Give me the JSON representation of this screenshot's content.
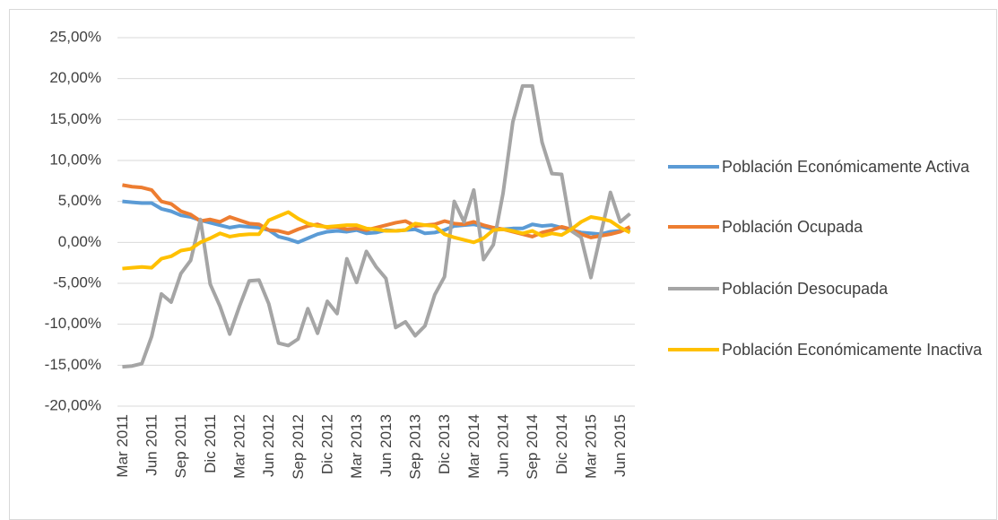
{
  "chart_data": {
    "type": "line",
    "categories": [
      "Mar 2011",
      null,
      null,
      "Jun 2011",
      null,
      null,
      "Sep 2011",
      null,
      null,
      "Dic 2011",
      null,
      null,
      "Mar 2012",
      null,
      null,
      "Jun 2012",
      null,
      null,
      "Sep 2012",
      null,
      null,
      "Dic 2012",
      null,
      null,
      "Mar 2013",
      null,
      null,
      "Jun 2013",
      null,
      null,
      "Sep 2013",
      null,
      null,
      "Dic 2013",
      null,
      null,
      "Mar 2014",
      null,
      null,
      "Jun 2014",
      null,
      null,
      "Sep 2014",
      null,
      null,
      "Dic 2014",
      null,
      null,
      "Mar 2015",
      null,
      null,
      "Jun 2015",
      null
    ],
    "series": [
      {
        "name": "Población Económicamente Activa",
        "color": "#5b9bd5",
        "values": [
          5.0,
          4.9,
          4.8,
          4.8,
          4.1,
          3.8,
          3.3,
          3.1,
          2.7,
          2.4,
          2.1,
          1.8,
          2.0,
          1.9,
          1.8,
          1.5,
          0.7,
          0.4,
          0.0,
          0.5,
          1.0,
          1.3,
          1.4,
          1.3,
          1.5,
          1.1,
          1.2,
          1.5,
          1.4,
          1.5,
          1.6,
          1.1,
          1.2,
          1.5,
          2.0,
          2.1,
          2.2,
          1.9,
          1.6,
          1.6,
          1.7,
          1.7,
          2.2,
          2.0,
          2.1,
          1.8,
          1.5,
          1.2,
          1.1,
          1.0,
          1.3,
          1.4,
          1.7
        ]
      },
      {
        "name": "Población Ocupada",
        "color": "#ed7d31",
        "values": [
          7.0,
          6.8,
          6.7,
          6.4,
          5.0,
          4.7,
          3.8,
          3.4,
          2.6,
          2.8,
          2.5,
          3.1,
          2.7,
          2.3,
          2.2,
          1.5,
          1.4,
          1.1,
          1.6,
          2.0,
          2.2,
          1.8,
          1.9,
          1.6,
          1.7,
          1.5,
          1.8,
          2.1,
          2.4,
          2.6,
          2.0,
          2.1,
          2.2,
          2.6,
          2.3,
          2.2,
          2.5,
          2.1,
          1.8,
          1.6,
          1.3,
          1.0,
          0.7,
          1.2,
          1.5,
          1.9,
          1.6,
          1.0,
          0.6,
          0.8,
          1.0,
          1.3,
          1.9
        ]
      },
      {
        "name": "Población Desocupada",
        "color": "#a5a5a5",
        "values": [
          -15.2,
          -15.1,
          -14.8,
          -11.5,
          -6.3,
          -7.3,
          -3.8,
          -2.2,
          2.8,
          -5.1,
          -7.8,
          -11.2,
          -7.8,
          -4.7,
          -4.6,
          -7.5,
          -12.3,
          -12.6,
          -11.8,
          -8.1,
          -11.1,
          -7.2,
          -8.7,
          -2.0,
          -4.9,
          -1.1,
          -3.0,
          -4.4,
          -10.4,
          -9.7,
          -11.4,
          -10.2,
          -6.4,
          -4.2,
          5.0,
          2.5,
          6.4,
          -2.1,
          -0.3,
          6.0,
          14.7,
          19.1,
          19.1,
          12.2,
          8.4,
          8.3,
          1.4,
          0.6,
          -4.3,
          1.0,
          6.1,
          2.5,
          3.5
        ]
      },
      {
        "name": "Población Económicamente Inactiva",
        "color": "#ffc000",
        "values": [
          -3.2,
          -3.1,
          -3.0,
          -3.1,
          -2.0,
          -1.7,
          -1.0,
          -0.8,
          0.0,
          0.5,
          1.1,
          0.7,
          0.9,
          1.0,
          1.0,
          2.7,
          3.2,
          3.7,
          2.9,
          2.3,
          2.0,
          1.9,
          2.0,
          2.1,
          2.1,
          1.7,
          1.6,
          1.4,
          1.4,
          1.5,
          2.3,
          2.1,
          2.0,
          1.0,
          0.6,
          0.3,
          0.0,
          0.5,
          1.5,
          1.6,
          1.4,
          1.1,
          1.4,
          0.8,
          1.1,
          0.9,
          1.6,
          2.5,
          3.1,
          2.9,
          2.6,
          1.8,
          1.2
        ]
      }
    ],
    "ylim": [
      -20,
      25
    ],
    "yticks": [
      {
        "value": -20,
        "label": "-20,00%"
      },
      {
        "value": -15,
        "label": "-15,00%"
      },
      {
        "value": -10,
        "label": "-10,00%"
      },
      {
        "value": -5,
        "label": "-5,00%"
      },
      {
        "value": 0,
        "label": "0,00%"
      },
      {
        "value": 5,
        "label": "5,00%"
      },
      {
        "value": 10,
        "label": "10,00%"
      },
      {
        "value": 15,
        "label": "15,00%"
      },
      {
        "value": 20,
        "label": "20,00%"
      },
      {
        "value": 25,
        "label": "25,00%"
      }
    ],
    "grid": true,
    "legend": "right"
  }
}
